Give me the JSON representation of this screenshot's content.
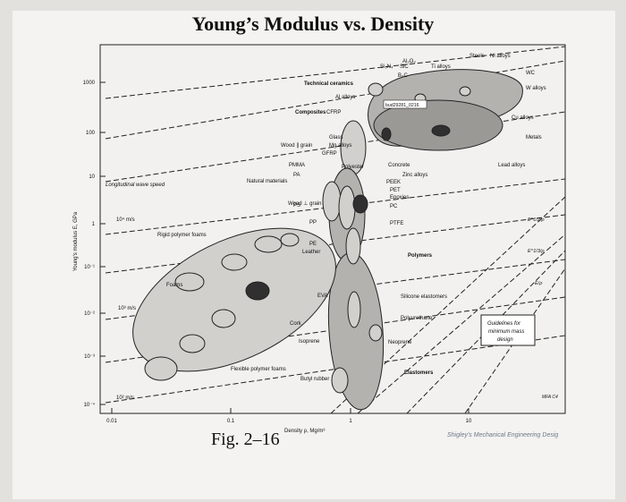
{
  "page": {
    "title": "Young’s Modulus vs. Density",
    "figure_label": "Fig. 2–16",
    "credit": "Shigley's Mechanical Engineering Desig"
  },
  "colors": {
    "envelope_fill": "#b4b2ae",
    "bubble_dark": "#303030",
    "bubble_light": "#d2d0cc",
    "background": "#f4f3f1"
  },
  "chart_data": {
    "type": "scatter",
    "title": "Young’s Modulus vs. Density",
    "xlabel": "Density ρ, Mg/m³",
    "ylabel": "Young's modulus E, GPa",
    "x_scale": "log",
    "y_scale": "log",
    "xlim": [
      0.01,
      50
    ],
    "ylim": [
      0.01,
      1000
    ],
    "x_ticks": [
      "0.01",
      "0.1",
      "1",
      "10"
    ],
    "y_ticks": [
      "10⁻⁴",
      "10⁻³",
      "10⁻²",
      "10⁻¹",
      "1",
      "10",
      "100",
      "1000"
    ],
    "stamp": "bud29281_0216",
    "families": [
      {
        "name": "Technical ceramics",
        "x": [
          2.2,
          6.0
        ],
        "y": [
          80,
          700
        ]
      },
      {
        "name": "Metals",
        "x": [
          1.7,
          20
        ],
        "y": [
          15,
          450
        ]
      },
      {
        "name": "Composites",
        "x": [
          1.5,
          2.2
        ],
        "y": [
          15,
          250
        ]
      },
      {
        "name": "Natural materials",
        "x": [
          0.6,
          1.3
        ],
        "y": [
          0.5,
          40
        ]
      },
      {
        "name": "Polymers",
        "x": [
          0.9,
          2.2
        ],
        "y": [
          0.2,
          5
        ]
      },
      {
        "name": "Foams",
        "x": [
          0.012,
          0.6
        ],
        "y": [
          0.0001,
          1
        ]
      },
      {
        "name": "Elastomers",
        "x": [
          0.9,
          1.6
        ],
        "y": [
          0.0005,
          0.06
        ]
      }
    ],
    "material_labels": [
      "Technical ceramics",
      "Composites",
      "CFRP",
      "Al₂O₃",
      "Si₃N₄",
      "SiC",
      "B₄C",
      "Steels",
      "Ni alloys",
      "Ti alloys",
      "WC",
      "W alloys",
      "Al alloys",
      "Cu alloys",
      "Glass",
      "Mg alloys",
      "GFRP",
      "Wood ∥ grain",
      "Metals",
      "Concrete",
      "Zinc alloys",
      "Lead alloys",
      "PMMA",
      "PA",
      "Polyester",
      "PEEK",
      "PET",
      "Epoxies",
      "PC",
      "PTFE",
      "Natural materials",
      "Wood ⊥ grain",
      "PS",
      "PP",
      "PE",
      "Leather",
      "Polymers",
      "Rigid polymer foams",
      "Foams",
      "EVA",
      "Silicone elastomers",
      "Polyurethane",
      "Cork",
      "Isoprene",
      "Neoprene",
      "Flexible polymer foams",
      "Butyl rubber",
      "Elastomers"
    ],
    "guidelines": {
      "title": "Guidelines for minimum mass design",
      "items": [
        "E/ρ",
        "E^1/2/ρ",
        "E^1/3/ρ"
      ],
      "wave_speed_title": "Longitudinal wave speed",
      "wave_speeds": [
        "10⁴ m/s",
        "10³ m/s",
        "10² m/s"
      ],
      "corner": "MFA C4"
    }
  }
}
